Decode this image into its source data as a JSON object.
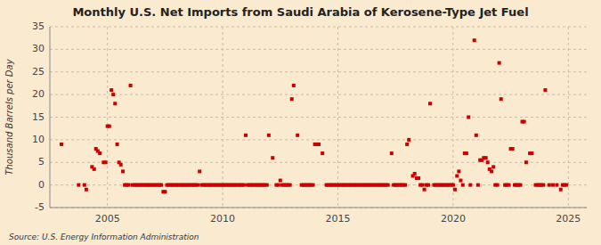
{
  "chart_data": {
    "type": "scatter",
    "title": "Monthly U.S. Net Imports from Saudi Arabia of Kerosene-Type Jet Fuel",
    "ylabel": "Thousand Barrels per Day",
    "annotation": "Source: U.S. Energy Information Administration",
    "color": "#cc0000",
    "marker": "square",
    "grid": true,
    "xlim": [
      2002.5,
      2025.8
    ],
    "xticks": [
      2005,
      2010,
      2015,
      2020,
      2025
    ],
    "ylim": [
      -5,
      35
    ],
    "yticks": [
      -5,
      0,
      5,
      10,
      15,
      20,
      25,
      30,
      35
    ],
    "x": [
      2003.0,
      2003.75,
      2004.0,
      2004.08,
      2004.33,
      2004.42,
      2004.5,
      2004.58,
      2004.67,
      2004.83,
      2004.92,
      2005.0,
      2005.08,
      2005.17,
      2005.25,
      2005.33,
      2005.42,
      2005.5,
      2005.58,
      2005.67,
      2005.75,
      2005.83,
      2005.92,
      2006.0,
      2006.08,
      2006.17,
      2006.25,
      2006.33,
      2006.42,
      2006.5,
      2006.58,
      2006.67,
      2006.75,
      2006.83,
      2006.92,
      2007.0,
      2007.08,
      2007.17,
      2007.25,
      2007.33,
      2007.42,
      2007.5,
      2007.58,
      2007.67,
      2007.75,
      2007.83,
      2007.92,
      2008.0,
      2008.08,
      2008.17,
      2008.25,
      2008.33,
      2008.42,
      2008.5,
      2008.58,
      2008.67,
      2008.75,
      2008.83,
      2008.92,
      2009.0,
      2009.08,
      2009.17,
      2009.25,
      2009.33,
      2009.42,
      2009.5,
      2009.58,
      2009.67,
      2009.75,
      2009.83,
      2009.92,
      2010.0,
      2010.08,
      2010.17,
      2010.25,
      2010.33,
      2010.42,
      2010.5,
      2010.58,
      2010.67,
      2010.75,
      2010.83,
      2010.92,
      2011.0,
      2011.08,
      2011.17,
      2011.25,
      2011.33,
      2011.42,
      2011.5,
      2011.58,
      2011.67,
      2011.75,
      2011.83,
      2011.92,
      2012.0,
      2012.17,
      2012.33,
      2012.42,
      2012.5,
      2012.58,
      2012.67,
      2012.75,
      2012.83,
      2012.92,
      2013.0,
      2013.08,
      2013.25,
      2013.42,
      2013.5,
      2013.58,
      2013.67,
      2013.75,
      2013.83,
      2013.92,
      2014.0,
      2014.08,
      2014.17,
      2014.33,
      2014.5,
      2014.58,
      2014.67,
      2014.75,
      2014.83,
      2014.92,
      2015.0,
      2015.08,
      2015.17,
      2015.25,
      2015.33,
      2015.42,
      2015.5,
      2015.58,
      2015.67,
      2015.75,
      2015.83,
      2015.92,
      2016.0,
      2016.08,
      2016.17,
      2016.25,
      2016.33,
      2016.42,
      2016.5,
      2016.58,
      2016.67,
      2016.75,
      2016.83,
      2016.92,
      2017.0,
      2017.08,
      2017.17,
      2017.33,
      2017.42,
      2017.5,
      2017.58,
      2017.67,
      2017.75,
      2017.83,
      2017.92,
      2018.0,
      2018.08,
      2018.25,
      2018.33,
      2018.42,
      2018.5,
      2018.58,
      2018.67,
      2018.75,
      2018.83,
      2018.92,
      2019.0,
      2019.17,
      2019.25,
      2019.33,
      2019.42,
      2019.5,
      2019.58,
      2019.67,
      2019.75,
      2019.83,
      2019.92,
      2020.0,
      2020.08,
      2020.17,
      2020.25,
      2020.33,
      2020.42,
      2020.5,
      2020.58,
      2020.67,
      2020.75,
      2020.92,
      2021.0,
      2021.08,
      2021.17,
      2021.25,
      2021.33,
      2021.42,
      2021.5,
      2021.58,
      2021.67,
      2021.75,
      2021.83,
      2021.92,
      2022.0,
      2022.08,
      2022.25,
      2022.33,
      2022.42,
      2022.5,
      2022.58,
      2022.67,
      2022.75,
      2022.83,
      2022.92,
      2023.0,
      2023.08,
      2023.17,
      2023.33,
      2023.42,
      2023.58,
      2023.67,
      2023.75,
      2023.83,
      2023.92,
      2024.0,
      2024.17,
      2024.33,
      2024.5,
      2024.67,
      2024.75,
      2024.83,
      2024.92
    ],
    "values": [
      9.0,
      0.0,
      0.0,
      -1.0,
      4.0,
      3.5,
      8.0,
      7.5,
      7.0,
      5.0,
      5.0,
      13.0,
      13.0,
      21.0,
      20.0,
      18.0,
      9.0,
      5.0,
      4.5,
      3.0,
      0.0,
      0.0,
      0.0,
      22.0,
      0.0,
      0.0,
      0.0,
      0.0,
      0.0,
      0.0,
      0.0,
      0.0,
      0.0,
      0.0,
      0.0,
      0.0,
      0.0,
      0.0,
      0.0,
      0.0,
      -1.5,
      -1.5,
      0.0,
      0.0,
      0.0,
      0.0,
      0.0,
      0.0,
      0.0,
      0.0,
      0.0,
      0.0,
      0.0,
      0.0,
      0.0,
      0.0,
      0.0,
      0.0,
      0.0,
      3.0,
      0.0,
      0.0,
      0.0,
      0.0,
      0.0,
      0.0,
      0.0,
      0.0,
      0.0,
      0.0,
      0.0,
      0.0,
      0.0,
      0.0,
      0.0,
      0.0,
      0.0,
      0.0,
      0.0,
      0.0,
      0.0,
      0.0,
      0.0,
      11.0,
      0.0,
      0.0,
      0.0,
      0.0,
      0.0,
      0.0,
      0.0,
      0.0,
      0.0,
      0.0,
      0.0,
      11.0,
      6.0,
      0.0,
      0.0,
      1.0,
      0.0,
      0.0,
      0.0,
      0.0,
      0.0,
      19.0,
      22.0,
      11.0,
      0.0,
      0.0,
      0.0,
      0.0,
      0.0,
      0.0,
      0.0,
      9.0,
      9.0,
      9.0,
      7.0,
      0.0,
      0.0,
      0.0,
      0.0,
      0.0,
      0.0,
      0.0,
      0.0,
      0.0,
      0.0,
      0.0,
      0.0,
      0.0,
      0.0,
      0.0,
      0.0,
      0.0,
      0.0,
      0.0,
      0.0,
      0.0,
      0.0,
      0.0,
      0.0,
      0.0,
      0.0,
      0.0,
      0.0,
      0.0,
      0.0,
      0.0,
      0.0,
      0.0,
      7.0,
      0.0,
      0.0,
      0.0,
      0.0,
      0.0,
      0.0,
      0.0,
      9.0,
      10.0,
      2.0,
      2.5,
      1.5,
      1.5,
      0.0,
      0.0,
      -1.0,
      0.0,
      0.0,
      18.0,
      0.0,
      0.0,
      0.0,
      0.0,
      0.0,
      0.0,
      0.0,
      0.0,
      0.0,
      0.0,
      0.0,
      -1.0,
      2.0,
      3.0,
      1.0,
      0.0,
      7.0,
      7.0,
      15.0,
      0.0,
      32.0,
      11.0,
      0.0,
      5.5,
      5.5,
      6.0,
      6.0,
      5.0,
      3.5,
      3.0,
      4.0,
      0.0,
      0.0,
      27.0,
      19.0,
      0.0,
      0.0,
      0.0,
      8.0,
      8.0,
      0.0,
      0.0,
      0.0,
      0.0,
      14.0,
      14.0,
      5.0,
      7.0,
      7.0,
      0.0,
      0.0,
      0.0,
      0.0,
      0.0,
      21.0,
      0.0,
      0.0,
      0.0,
      -1.0,
      0.0,
      0.0,
      0.0
    ]
  }
}
